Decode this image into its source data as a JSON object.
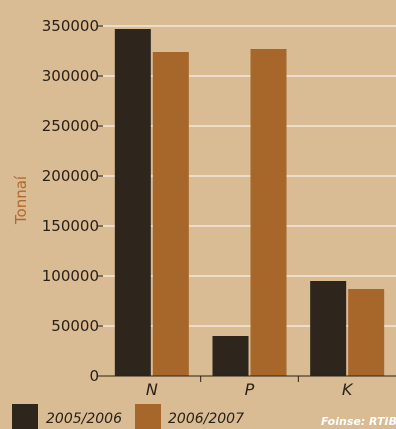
{
  "chart_data": {
    "type": "bar",
    "categories": [
      "N",
      "P",
      "K"
    ],
    "series": [
      {
        "name": "2005/2006",
        "color": "#2e261c",
        "values": [
          347000,
          40000,
          95000
        ]
      },
      {
        "name": "2006/2007",
        "color": "#a8672a",
        "values": [
          324000,
          327000,
          87000
        ]
      }
    ],
    "ylabel": "Tonnaí",
    "ylim": [
      0,
      350000
    ],
    "yticks": [
      0,
      50000,
      100000,
      150000,
      200000,
      250000,
      300000,
      350000
    ],
    "grid": true,
    "legend_position": "bottom-left",
    "source": "Foinse: RTIB"
  },
  "colors": {
    "background": "#d9bb94",
    "grid": "#ffffff"
  }
}
